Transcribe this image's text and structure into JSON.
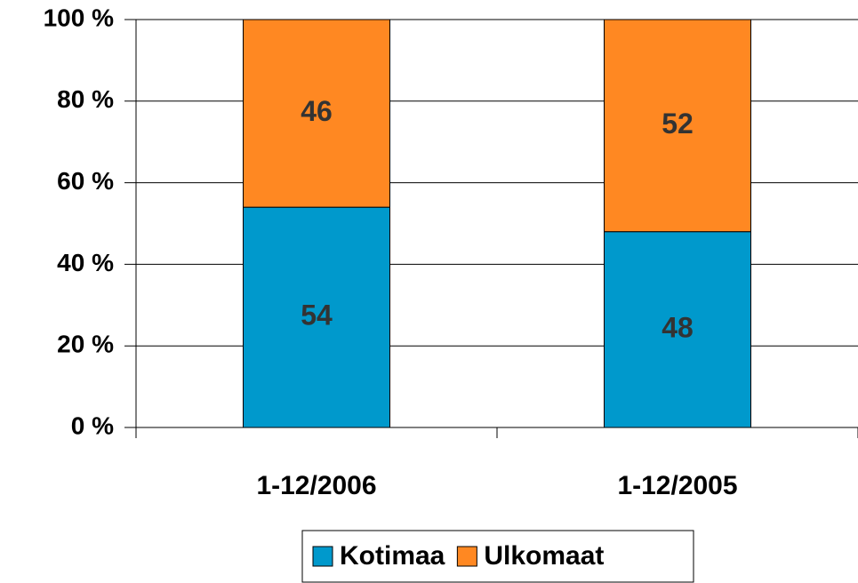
{
  "chart_data": {
    "type": "stacked-bar",
    "categories": [
      "1-12/2006",
      "1-12/2005"
    ],
    "series": [
      {
        "name": "Kotimaa",
        "color": "#0099cc",
        "values": [
          54,
          48
        ]
      },
      {
        "name": "Ulkomaat",
        "color": "#ff8822",
        "values": [
          46,
          52
        ]
      }
    ],
    "ylim": [
      0,
      100
    ],
    "yticks": [
      {
        "value": 0,
        "label": "0 %"
      },
      {
        "value": 20,
        "label": "20 %"
      },
      {
        "value": 40,
        "label": "40 %"
      },
      {
        "value": 60,
        "label": "60 %"
      },
      {
        "value": 80,
        "label": "80 %"
      },
      {
        "value": 100,
        "label": "100 %"
      }
    ],
    "grid": true,
    "legend": "bottom"
  }
}
